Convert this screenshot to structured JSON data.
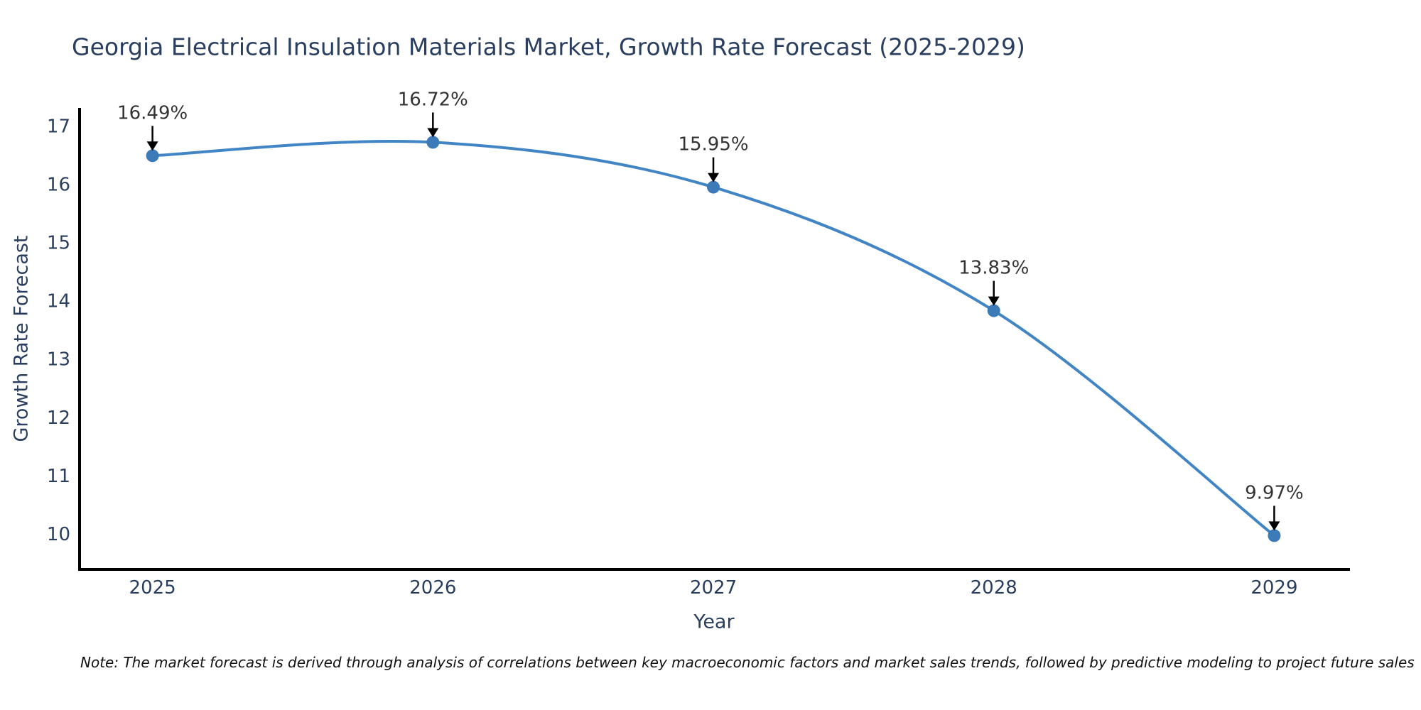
{
  "chart_data": {
    "type": "line",
    "title": "Georgia Electrical Insulation Materials Market, Growth Rate Forecast (2025-2029)",
    "xlabel": "Year",
    "ylabel": "Growth Rate Forecast",
    "line_shape": "spline",
    "grid": false,
    "legend": false,
    "x": [
      2025,
      2026,
      2027,
      2028,
      2029
    ],
    "values": [
      16.49,
      16.72,
      15.95,
      13.83,
      9.97
    ],
    "point_labels": [
      "16.49%",
      "16.72%",
      "15.95%",
      "13.83%",
      "9.97%"
    ],
    "x_tick_labels": [
      "2025",
      "2026",
      "2027",
      "2028",
      "2029"
    ],
    "y_ticks": [
      10,
      11,
      12,
      13,
      14,
      15,
      16,
      17
    ],
    "xlim": [
      2024.74,
      2029.27
    ],
    "ylim": [
      9.39,
      17.31
    ],
    "colors": {
      "line": "#4185c5",
      "marker": "#3c7ab8",
      "axis_line": "#000000",
      "axis_text": "#2a3f5f",
      "annotation_text": "#333333",
      "arrow": "#000000"
    },
    "note": "Note: The market forecast is derived through analysis of correlations between key macroeconomic factors and market sales trends, followed by predictive modeling to project future sales"
  }
}
